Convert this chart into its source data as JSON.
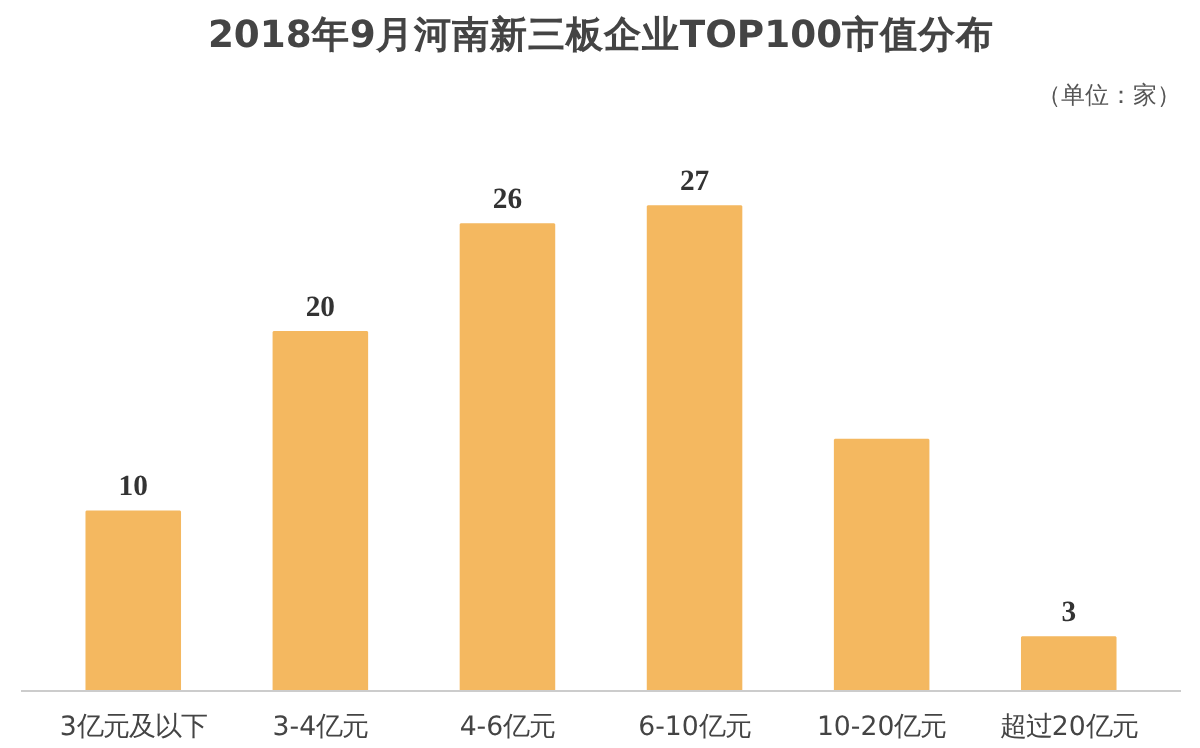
{
  "chart_data": {
    "type": "bar",
    "title": "2018年9月河南新三板企业TOP100市值分布",
    "subtitle": "（单位：家）",
    "categories": [
      "3亿元及以下",
      "3-4亿元",
      "4-6亿元",
      "6-10亿元",
      "10-20亿元",
      "超过20亿元"
    ],
    "values": [
      10,
      20,
      26,
      27,
      14,
      3
    ],
    "value_labels": [
      "10",
      "20",
      "26",
      "27",
      null,
      "3"
    ],
    "color": "#f4b860",
    "grid": false,
    "tick_labels": "x"
  }
}
